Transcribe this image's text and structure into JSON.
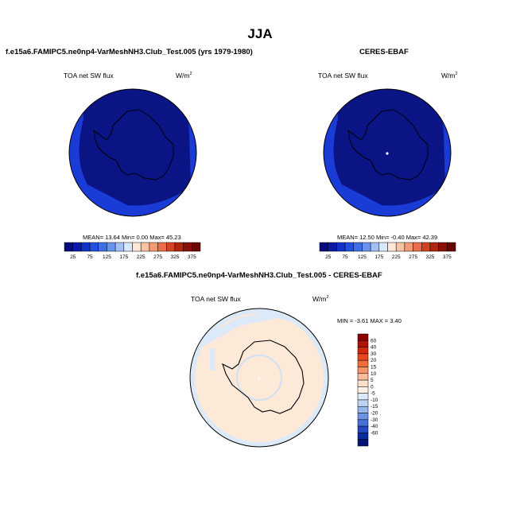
{
  "figure": {
    "title": "JJA"
  },
  "chart_data": [
    {
      "type": "heatmap",
      "projection": "south-polar-stereographic",
      "title": "f.e15a6.FAMIPC5.ne0np4-VarMeshNH3.Club_Test.005 (yrs 1979-1980)",
      "variable_label": "TOA net SW flux",
      "units_label": "W/m",
      "units_sup": "2",
      "stats": {
        "mean": "13.64",
        "min": "0.00",
        "max": "45.23",
        "text": "MEAN=  13.64  Min=   0.00  Max=  45.23"
      },
      "colorbar": {
        "orientation": "horizontal",
        "tick_labels": [
          "25",
          "75",
          "125",
          "175",
          "225",
          "275",
          "325",
          "375"
        ],
        "colors": [
          "#050c7d",
          "#0a1aa6",
          "#1132c8",
          "#2050e0",
          "#3c6fe8",
          "#6a93ee",
          "#a3c0f6",
          "#d9e8fa",
          "#fde8d8",
          "#f7c3a2",
          "#f29a72",
          "#e86c45",
          "#d2441f",
          "#b02510",
          "#8a0f06",
          "#6a0502"
        ]
      },
      "field_summary": "uniform low values (dark blue) over the polar region"
    },
    {
      "type": "heatmap",
      "projection": "south-polar-stereographic",
      "title": "CERES-EBAF",
      "variable_label": "TOA net SW flux",
      "units_label": "W/m",
      "units_sup": "2",
      "stats": {
        "mean": "12.50",
        "min": "-0.40",
        "max": "42.39",
        "text": "MEAN=  12.50  Min=  -0.40  Max=  42.39"
      },
      "colorbar": {
        "orientation": "horizontal",
        "tick_labels": [
          "25",
          "75",
          "125",
          "175",
          "225",
          "275",
          "325",
          "375"
        ],
        "colors": [
          "#050c7d",
          "#0a1aa6",
          "#1132c8",
          "#2050e0",
          "#3c6fe8",
          "#6a93ee",
          "#a3c0f6",
          "#d9e8fa",
          "#fde8d8",
          "#f7c3a2",
          "#f29a72",
          "#e86c45",
          "#d2441f",
          "#b02510",
          "#8a0f06",
          "#6a0502"
        ]
      },
      "field_summary": "uniform low values (dark blue) over the polar region"
    },
    {
      "type": "heatmap",
      "projection": "south-polar-stereographic",
      "title": "f.e15a6.FAMIPC5.ne0np4-VarMeshNH3.Club_Test.005 - CERES-EBAF",
      "variable_label": "TOA net SW flux",
      "units_label": "W/m",
      "units_sup": "2",
      "stats": {
        "min": "-3.61",
        "max": "3.40",
        "text": "MIN =  -3.61 MAX =   3.40"
      },
      "colorbar": {
        "orientation": "vertical",
        "tick_labels": [
          "60",
          "40",
          "30",
          "20",
          "15",
          "10",
          "5",
          "0",
          "-5",
          "-10",
          "-15",
          "-20",
          "-30",
          "-40",
          "-60"
        ],
        "colors": [
          "#8b0000",
          "#b01208",
          "#d1280e",
          "#e8461f",
          "#f26d3c",
          "#f7956a",
          "#fbbd9b",
          "#fde0cc",
          "#fff1e5",
          "#dde9f8",
          "#bcd3f2",
          "#96b5eb",
          "#6d94e2",
          "#4571d8",
          "#2149c2",
          "#0b2a9b",
          "#041476"
        ]
      },
      "field_summary": "differences mostly slightly positive (pale peach) with pale blue near-zero ring at outer edge and around the pole"
    }
  ]
}
